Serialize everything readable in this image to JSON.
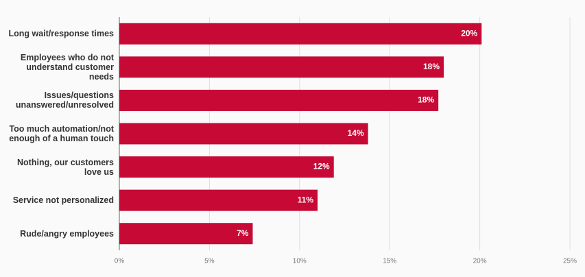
{
  "chart_data": {
    "type": "bar",
    "orientation": "horizontal",
    "categories": [
      "Long wait/response times",
      "Employees who do not understand customer needs",
      "Issues/questions unanswered/unresolved",
      "Too much automation/not enough of a human touch",
      "Nothing, our customers love us",
      "Service not personalized",
      "Rude/angry employees"
    ],
    "values": [
      20.1,
      18.0,
      17.7,
      13.8,
      11.9,
      11.0,
      7.4
    ],
    "value_labels": [
      "20%",
      "18%",
      "18%",
      "14%",
      "12%",
      "11%",
      "7%"
    ],
    "color": "#c60a35",
    "xlim": [
      0,
      25
    ],
    "xticks": [
      {
        "value": 0,
        "label": "0%"
      },
      {
        "value": 5,
        "label": "5%"
      },
      {
        "value": 10,
        "label": "10%"
      },
      {
        "value": 15,
        "label": "15%"
      },
      {
        "value": 20,
        "label": "20%"
      },
      {
        "value": 25,
        "label": "25%"
      }
    ],
    "grid": true
  }
}
